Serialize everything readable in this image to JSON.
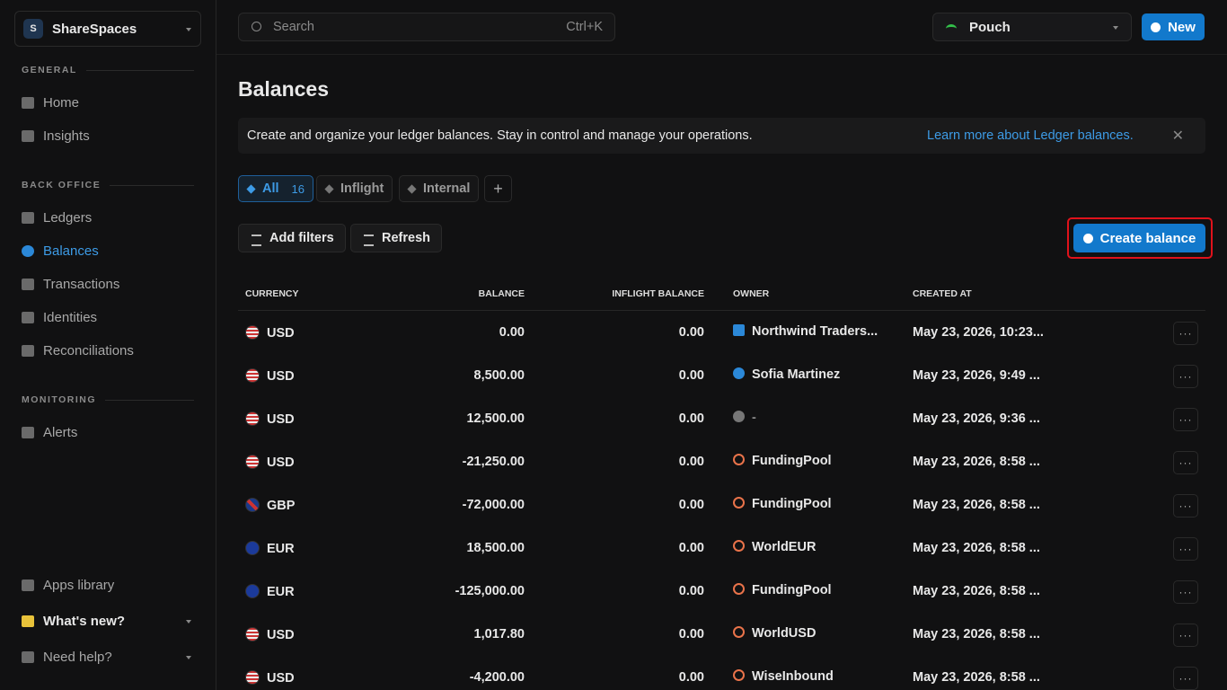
{
  "sidebar": {
    "workspace_initial": "S",
    "workspace": "ShareSpaces",
    "sections": [
      {
        "title": "GENERAL",
        "items": [
          "Home",
          "Insights"
        ]
      },
      {
        "title": "BACK OFFICE",
        "items": [
          "Ledgers",
          "Balances",
          "Transactions",
          "Identities",
          "Reconciliations"
        ]
      },
      {
        "title": "MONITORING",
        "items": [
          "Alerts"
        ]
      }
    ],
    "footer": [
      "Apps library",
      "What's new?",
      "Need help?"
    ]
  },
  "topbar": {
    "search": "Search",
    "shortcut": "Ctrl+K",
    "ledger": "Pouch",
    "new_button": "New"
  },
  "page": {
    "title": "Balances",
    "banner_text": "Create and organize your ledger balances. Stay in control and manage your operations.",
    "banner_link": "Learn more about Ledger balances.",
    "tabs": [
      {
        "label": "All",
        "count": 16
      },
      {
        "label": "Inflight"
      },
      {
        "label": "Internal"
      }
    ],
    "add_filters": "Add filters",
    "refresh": "Refresh",
    "create_balance": "Create balance"
  },
  "table": {
    "columns": [
      "CURRENCY",
      "BALANCE",
      "INFLIGHT BALANCE",
      "OWNER",
      "CREATED AT"
    ],
    "rows": [
      [
        "USD",
        "0.00",
        "0.00",
        "Northwind Traders...",
        "May 23, 2026, 10:23..."
      ],
      [
        "USD",
        "8,500.00",
        "0.00",
        "Sofia Martinez",
        "May 23, 2026, 9:49 ..."
      ],
      [
        "USD",
        "12,500.00",
        "0.00",
        "-",
        "May 23, 2026, 9:36 ..."
      ],
      [
        "USD",
        "-21,250.00",
        "0.00",
        "FundingPool",
        "May 23, 2026, 8:58 ..."
      ],
      [
        "GBP",
        "-72,000.00",
        "0.00",
        "FundingPool",
        "May 23, 2026, 8:58 ..."
      ],
      [
        "EUR",
        "18,500.00",
        "0.00",
        "WorldEUR",
        "May 23, 2026, 8:58 ..."
      ],
      [
        "EUR",
        "-125,000.00",
        "0.00",
        "FundingPool",
        "May 23, 2026, 8:58 ..."
      ],
      [
        "USD",
        "1,017.80",
        "0.00",
        "WorldUSD",
        "May 23, 2026, 8:58 ..."
      ],
      [
        "USD",
        "-4,200.00",
        "0.00",
        "WiseInbound",
        "May 23, 2026, 8:58 ..."
      ]
    ]
  }
}
